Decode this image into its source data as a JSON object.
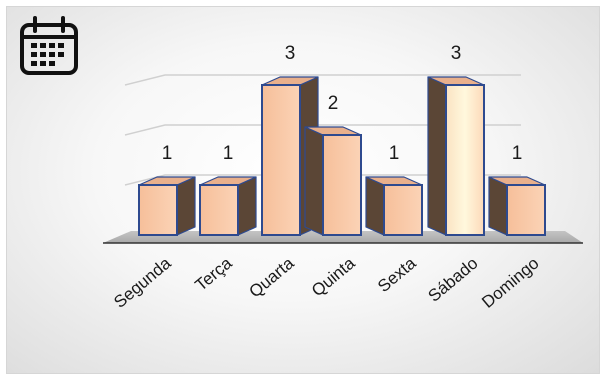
{
  "chart_data": {
    "type": "bar",
    "title": "",
    "xlabel": "",
    "ylabel": "",
    "categories": [
      "Segunda",
      "Terça",
      "Quarta",
      "Quinta",
      "Sexta",
      "Sábado",
      "Domingo"
    ],
    "values": [
      1,
      1,
      3,
      2,
      1,
      3,
      1
    ],
    "data_labels": [
      "1",
      "1",
      "3",
      "2",
      "1",
      "3",
      "1"
    ],
    "ylim": [
      0,
      3
    ],
    "grid": true,
    "legend": "none",
    "style": "3d-column",
    "colors": {
      "bar_front": "#f9c7a4",
      "bar_side": "#5b4636",
      "bar_edge": "#2e4a8f",
      "floor": "#b3b3b3",
      "grid": "#d0d0d0"
    }
  },
  "icon": {
    "name": "calendar-icon"
  }
}
